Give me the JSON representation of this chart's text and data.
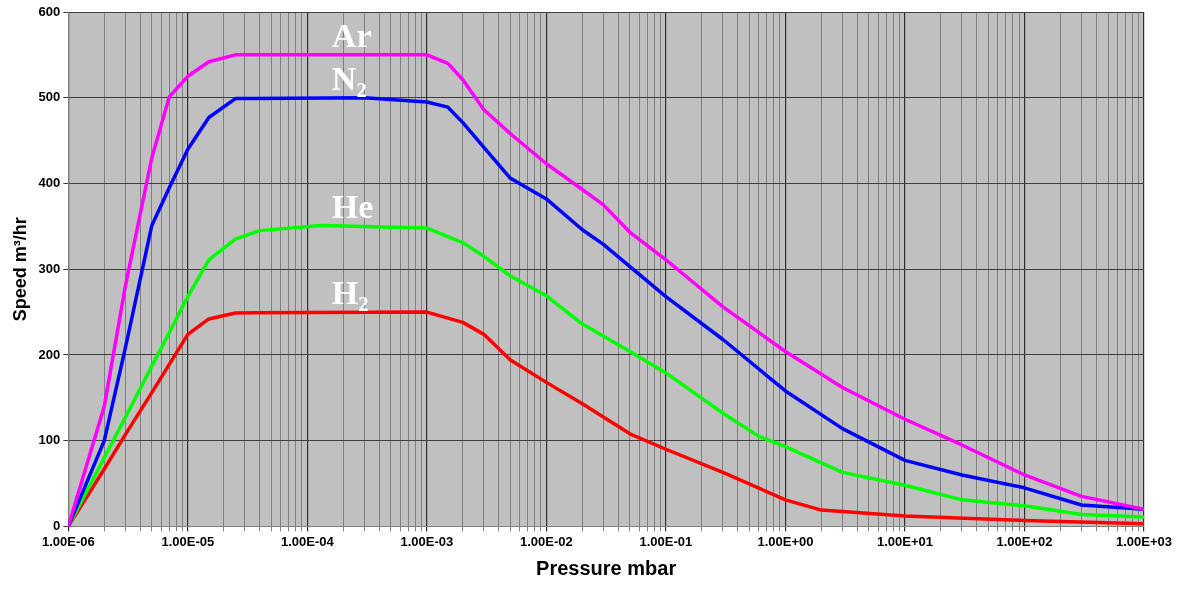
{
  "chart_data": {
    "type": "line",
    "xlabel": "Pressure mbar",
    "ylabel": "Speed m³/hr",
    "log": "x",
    "grid": true,
    "legend": false,
    "marker": "none",
    "line_style": "solid",
    "xlim": [
      1e-06,
      1000
    ],
    "ylim": [
      0,
      600
    ],
    "yticks": [
      0,
      100,
      200,
      300,
      400,
      500,
      600
    ],
    "xticks": [
      {
        "value": 1e-06,
        "label": "1.00E-06"
      },
      {
        "value": 2e-06,
        "label": null
      },
      {
        "value": 3e-06,
        "label": null
      },
      {
        "value": 4e-06,
        "label": null
      },
      {
        "value": 5e-06,
        "label": null
      },
      {
        "value": 6e-06,
        "label": null
      },
      {
        "value": 7e-06,
        "label": null
      },
      {
        "value": 8e-06,
        "label": null
      },
      {
        "value": 9e-06,
        "label": null
      },
      {
        "value": 1e-05,
        "label": "1.00E-05"
      },
      {
        "value": 2e-05,
        "label": null
      },
      {
        "value": 3e-05,
        "label": null
      },
      {
        "value": 4e-05,
        "label": null
      },
      {
        "value": 5e-05,
        "label": null
      },
      {
        "value": 6e-05,
        "label": null
      },
      {
        "value": 7e-05,
        "label": null
      },
      {
        "value": 8e-05,
        "label": null
      },
      {
        "value": 9e-05,
        "label": null
      },
      {
        "value": 0.0001,
        "label": "1.00E-04"
      },
      {
        "value": 0.0002,
        "label": null
      },
      {
        "value": 0.0003,
        "label": null
      },
      {
        "value": 0.0004,
        "label": null
      },
      {
        "value": 0.0005,
        "label": null
      },
      {
        "value": 0.0006,
        "label": null
      },
      {
        "value": 0.0007,
        "label": null
      },
      {
        "value": 0.0008,
        "label": null
      },
      {
        "value": 0.0009,
        "label": null
      },
      {
        "value": 0.001,
        "label": "1.00E-03"
      },
      {
        "value": 0.002,
        "label": null
      },
      {
        "value": 0.003,
        "label": null
      },
      {
        "value": 0.004,
        "label": null
      },
      {
        "value": 0.005,
        "label": null
      },
      {
        "value": 0.006,
        "label": null
      },
      {
        "value": 0.007,
        "label": null
      },
      {
        "value": 0.008,
        "label": null
      },
      {
        "value": 0.009,
        "label": null
      },
      {
        "value": 0.01,
        "label": "1.00E-02"
      },
      {
        "value": 0.02,
        "label": null
      },
      {
        "value": 0.03,
        "label": null
      },
      {
        "value": 0.04,
        "label": null
      },
      {
        "value": 0.05,
        "label": null
      },
      {
        "value": 0.06,
        "label": null
      },
      {
        "value": 0.07,
        "label": null
      },
      {
        "value": 0.08,
        "label": null
      },
      {
        "value": 0.09,
        "label": null
      },
      {
        "value": 0.1,
        "label": "1.00E-01"
      },
      {
        "value": 0.2,
        "label": null
      },
      {
        "value": 0.3,
        "label": null
      },
      {
        "value": 0.4,
        "label": null
      },
      {
        "value": 0.5,
        "label": null
      },
      {
        "value": 0.6,
        "label": null
      },
      {
        "value": 0.7,
        "label": null
      },
      {
        "value": 0.8,
        "label": null
      },
      {
        "value": 0.9,
        "label": null
      },
      {
        "value": 1,
        "label": "1.00E+00"
      },
      {
        "value": 2,
        "label": null
      },
      {
        "value": 3,
        "label": null
      },
      {
        "value": 4,
        "label": null
      },
      {
        "value": 5,
        "label": null
      },
      {
        "value": 6,
        "label": null
      },
      {
        "value": 7,
        "label": null
      },
      {
        "value": 8,
        "label": null
      },
      {
        "value": 9,
        "label": null
      },
      {
        "value": 10,
        "label": "1.00E+01"
      },
      {
        "value": 20,
        "label": null
      },
      {
        "value": 30,
        "label": null
      },
      {
        "value": 40,
        "label": null
      },
      {
        "value": 50,
        "label": null
      },
      {
        "value": 60,
        "label": null
      },
      {
        "value": 70,
        "label": null
      },
      {
        "value": 80,
        "label": null
      },
      {
        "value": 90,
        "label": null
      },
      {
        "value": 100,
        "label": "1.00E+02"
      },
      {
        "value": 200,
        "label": null
      },
      {
        "value": 300,
        "label": null
      },
      {
        "value": 400,
        "label": null
      },
      {
        "value": 500,
        "label": null
      },
      {
        "value": 600,
        "label": null
      },
      {
        "value": 700,
        "label": null
      },
      {
        "value": 800,
        "label": null
      },
      {
        "value": 900,
        "label": null
      },
      {
        "value": 1000,
        "label": "1.00E+03"
      }
    ],
    "series": [
      {
        "name": "Ar",
        "color": "#ff00ff",
        "x": [
          1e-06,
          2e-06,
          3e-06,
          5e-06,
          7e-06,
          1e-05,
          1.5e-05,
          2.5e-05,
          0.0001,
          0.001,
          0.0015,
          0.002,
          0.003,
          0.005,
          0.01,
          0.02,
          0.03,
          0.05,
          0.1,
          0.3,
          1,
          3,
          10,
          30,
          100,
          300,
          1000
        ],
        "values": [
          0,
          140,
          280,
          430,
          501,
          525,
          542,
          550,
          550,
          550,
          540,
          521,
          486,
          458,
          423,
          393,
          375,
          343,
          311,
          256,
          204,
          162,
          125,
          95,
          60,
          35,
          20
        ]
      },
      {
        "name": "N₂",
        "color": "#0000ff",
        "x": [
          1e-06,
          2e-06,
          3e-06,
          5e-06,
          7e-06,
          1e-05,
          1.5e-05,
          2.5e-05,
          0.0003,
          0.001,
          0.0015,
          0.002,
          0.003,
          0.005,
          0.01,
          0.02,
          0.03,
          0.05,
          0.1,
          0.3,
          1,
          3,
          10,
          30,
          100,
          300,
          1000
        ],
        "values": [
          0,
          100,
          208,
          351,
          395,
          440,
          477,
          499,
          500,
          495,
          489,
          471,
          442,
          406,
          382,
          346,
          329,
          303,
          268,
          218,
          158,
          114,
          77,
          60,
          45,
          25,
          20
        ]
      },
      {
        "name": "He",
        "color": "#00ff00",
        "x": [
          1e-06,
          2e-06,
          3e-06,
          5e-06,
          7e-06,
          1e-05,
          1.5e-05,
          2.5e-05,
          4e-05,
          0.00013,
          0.001,
          0.002,
          0.003,
          0.005,
          0.01,
          0.02,
          0.05,
          0.1,
          0.3,
          0.6,
          1,
          3,
          10,
          30,
          100,
          300,
          1000
        ],
        "values": [
          0,
          80,
          127,
          187,
          226,
          268,
          311,
          335,
          345,
          351,
          348,
          331,
          315,
          292,
          269,
          236,
          204,
          179,
          132,
          105,
          93,
          63,
          48,
          31,
          24,
          14,
          11
        ]
      },
      {
        "name": "H₂",
        "color": "#ff0000",
        "x": [
          1e-06,
          2e-06,
          3e-06,
          5e-06,
          7e-06,
          1e-05,
          1.5e-05,
          2.5e-05,
          0.001,
          0.002,
          0.003,
          0.005,
          0.01,
          0.02,
          0.05,
          0.1,
          0.3,
          1,
          2,
          10,
          100,
          1000
        ],
        "values": [
          0,
          67,
          107,
          156,
          189,
          224,
          242,
          249,
          250,
          238,
          224,
          194,
          168,
          143,
          108,
          90,
          63,
          31,
          19,
          12,
          7,
          3
        ]
      }
    ]
  }
}
